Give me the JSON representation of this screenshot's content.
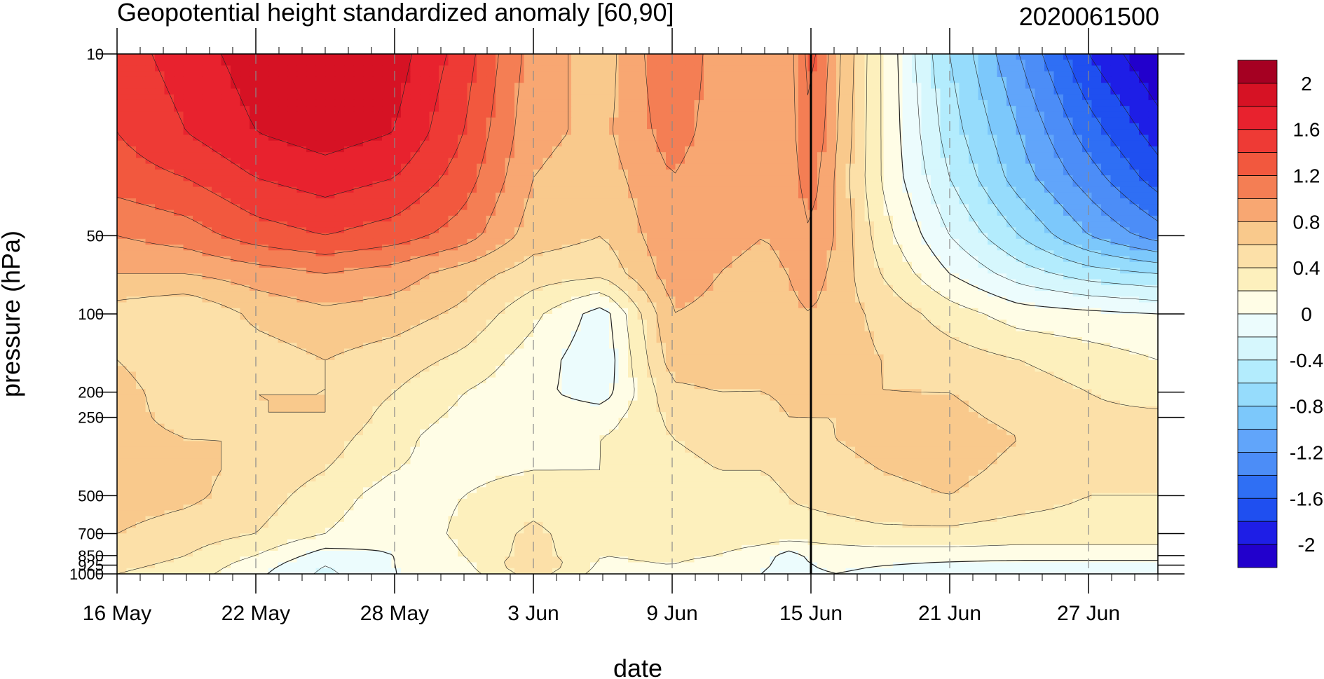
{
  "chart_data": {
    "type": "heatmap",
    "subtype": "filled-contour",
    "title": "Geopotential height standardized anomaly [60,90]",
    "right_title": "2020061500",
    "xlabel": "date",
    "ylabel": "pressure (hPa)",
    "y_scale": "log",
    "y_reversed": true,
    "xlim": [
      "2020-05-16",
      "2020-06-30"
    ],
    "ylim": [
      1000,
      10
    ],
    "x_ticks": [
      {
        "date": "2020-05-16",
        "label": "16 May"
      },
      {
        "date": "2020-05-22",
        "label": "22 May"
      },
      {
        "date": "2020-05-28",
        "label": "28 May"
      },
      {
        "date": "2020-06-03",
        "label": "3 Jun"
      },
      {
        "date": "2020-06-09",
        "label": "9 Jun"
      },
      {
        "date": "2020-06-15",
        "label": "15 Jun"
      },
      {
        "date": "2020-06-21",
        "label": "21 Jun"
      },
      {
        "date": "2020-06-27",
        "label": "27 Jun"
      }
    ],
    "y_ticks": [
      {
        "value": 10,
        "label": "10"
      },
      {
        "value": 50,
        "label": "50"
      },
      {
        "value": 100,
        "label": "100"
      },
      {
        "value": 200,
        "label": "200"
      },
      {
        "value": 250,
        "label": "250"
      },
      {
        "value": 500,
        "label": "500"
      },
      {
        "value": 700,
        "label": "700"
      },
      {
        "value": 850,
        "label": "850"
      },
      {
        "value": 925,
        "label": "925"
      },
      {
        "value": 1000,
        "label": "1000"
      }
    ],
    "marker_date": "2020-06-15",
    "dashed_gridlines": [
      "2020-05-22",
      "2020-05-28",
      "2020-06-03",
      "2020-06-09",
      "2020-06-21",
      "2020-06-27"
    ],
    "pressure_levels": [
      10,
      20,
      30,
      50,
      70,
      100,
      150,
      200,
      250,
      300,
      400,
      500,
      700,
      850,
      925,
      1000
    ],
    "dates": [
      "2020-05-16",
      "2020-05-19",
      "2020-05-22",
      "2020-05-25",
      "2020-05-28",
      "2020-05-31",
      "2020-06-03",
      "2020-06-06",
      "2020-06-09",
      "2020-06-11",
      "2020-06-13",
      "2020-06-14",
      "2020-06-15",
      "2020-06-16",
      "2020-06-18",
      "2020-06-21",
      "2020-06-24",
      "2020-06-27",
      "2020-06-30"
    ],
    "values": [
      [
        1.5,
        1.7,
        1.9,
        2.0,
        1.9,
        1.5,
        0.9,
        0.7,
        1.2,
        0.9,
        0.8,
        0.9,
        1.3,
        0.9,
        0.2,
        -0.6,
        -1.2,
        -1.8,
        -2.2
      ],
      [
        1.4,
        1.6,
        1.8,
        1.9,
        1.8,
        1.4,
        0.85,
        0.75,
        1.1,
        0.9,
        0.85,
        0.9,
        1.2,
        0.85,
        0.2,
        -0.5,
        -1.0,
        -1.5,
        -1.9
      ],
      [
        1.3,
        1.4,
        1.6,
        1.7,
        1.6,
        1.3,
        0.8,
        0.7,
        1.0,
        0.85,
        0.8,
        0.9,
        1.1,
        0.8,
        0.2,
        -0.4,
        -0.9,
        -1.3,
        -1.7
      ],
      [
        1.0,
        1.1,
        1.3,
        1.4,
        1.3,
        1.1,
        0.7,
        0.6,
        0.95,
        0.85,
        0.8,
        0.85,
        1.0,
        0.8,
        0.3,
        -0.2,
        -0.6,
        -1.0,
        -1.3
      ],
      [
        0.8,
        0.8,
        0.9,
        1.0,
        0.9,
        0.7,
        0.5,
        0.45,
        0.9,
        0.8,
        0.75,
        0.8,
        0.9,
        0.75,
        0.4,
        0.0,
        -0.3,
        -0.5,
        -0.6
      ],
      [
        0.5,
        0.4,
        0.65,
        0.75,
        0.7,
        0.55,
        0.25,
        -0.1,
        0.8,
        0.75,
        0.7,
        0.75,
        0.8,
        0.7,
        0.55,
        0.3,
        0.1,
        0.05,
        0.0
      ],
      [
        0.6,
        0.4,
        0.5,
        0.6,
        0.5,
        0.35,
        0.1,
        -0.15,
        0.7,
        0.7,
        0.65,
        0.7,
        0.75,
        0.7,
        0.6,
        0.5,
        0.4,
        0.3,
        0.2
      ],
      [
        0.7,
        0.45,
        0.6,
        0.6,
        0.4,
        0.2,
        0.05,
        -0.1,
        0.55,
        0.6,
        0.6,
        0.65,
        0.7,
        0.65,
        0.6,
        0.6,
        0.5,
        0.4,
        0.3
      ],
      [
        0.7,
        0.5,
        0.6,
        0.6,
        0.3,
        0.15,
        0.1,
        0.1,
        0.45,
        0.5,
        0.5,
        0.6,
        0.6,
        0.6,
        0.65,
        0.65,
        0.55,
        0.45,
        0.45
      ],
      [
        0.7,
        0.6,
        0.6,
        0.5,
        0.25,
        0.1,
        0.15,
        0.2,
        0.4,
        0.45,
        0.45,
        0.5,
        0.55,
        0.6,
        0.65,
        0.7,
        0.6,
        0.5,
        0.5
      ],
      [
        0.7,
        0.65,
        0.55,
        0.4,
        0.2,
        0.15,
        0.2,
        0.2,
        0.35,
        0.4,
        0.4,
        0.45,
        0.5,
        0.55,
        0.6,
        0.65,
        0.55,
        0.45,
        0.45
      ],
      [
        0.7,
        0.65,
        0.5,
        0.3,
        0.1,
        0.2,
        0.3,
        0.25,
        0.35,
        0.35,
        0.35,
        0.4,
        0.45,
        0.5,
        0.55,
        0.6,
        0.5,
        0.4,
        0.4
      ],
      [
        0.6,
        0.5,
        0.4,
        0.2,
        0.05,
        0.25,
        0.45,
        0.25,
        0.3,
        0.3,
        0.3,
        0.35,
        0.3,
        0.3,
        0.35,
        0.35,
        0.3,
        0.3,
        0.3
      ],
      [
        0.5,
        0.4,
        0.2,
        -0.1,
        0.0,
        0.2,
        0.5,
        0.2,
        0.25,
        0.2,
        0.1,
        -0.1,
        0.05,
        0.1,
        0.1,
        0.1,
        0.1,
        0.1,
        0.1
      ],
      [
        0.45,
        0.35,
        0.1,
        -0.2,
        0.0,
        0.15,
        0.6,
        0.15,
        0.2,
        0.1,
        0.05,
        -0.15,
        0.0,
        0.05,
        0.0,
        -0.05,
        -0.1,
        -0.1,
        -0.1
      ],
      [
        0.4,
        0.3,
        0.05,
        -0.25,
        0.0,
        0.1,
        0.5,
        0.1,
        0.15,
        0.05,
        0.0,
        -0.2,
        -0.05,
        0.0,
        -0.05,
        -0.1,
        -0.15,
        -0.15,
        -0.15
      ]
    ],
    "colorbar": {
      "levels": [
        -2.2,
        -2.0,
        -1.8,
        -1.6,
        -1.4,
        -1.2,
        -1.0,
        -0.8,
        -0.6,
        -0.4,
        -0.2,
        0.0,
        0.2,
        0.4,
        0.6,
        0.8,
        1.0,
        1.2,
        1.4,
        1.6,
        1.8,
        2.0,
        2.2
      ],
      "labels": [
        "2",
        "1.6",
        "1.2",
        "0.8",
        "0.4",
        "0",
        "-0.4",
        "-0.8",
        "-1.2",
        "-1.6",
        "-2"
      ],
      "label_values": [
        2.0,
        1.6,
        1.2,
        0.8,
        0.4,
        0.0,
        -0.4,
        -0.8,
        -1.2,
        -1.6,
        -2.0
      ],
      "colors": [
        "#2200cc",
        "#1e1ee6",
        "#1f4ff0",
        "#2f6ff4",
        "#4c8df7",
        "#61a5fa",
        "#7cc8fb",
        "#96dcfc",
        "#b3ecfd",
        "#d6f7fd",
        "#ecfcfd",
        "#fffde6",
        "#fdf0bd",
        "#fce0a8",
        "#f9c98c",
        "#f8a772",
        "#f47e54",
        "#f2583e",
        "#ee3a35",
        "#e8222e",
        "#d61224",
        "#a50022"
      ]
    }
  }
}
